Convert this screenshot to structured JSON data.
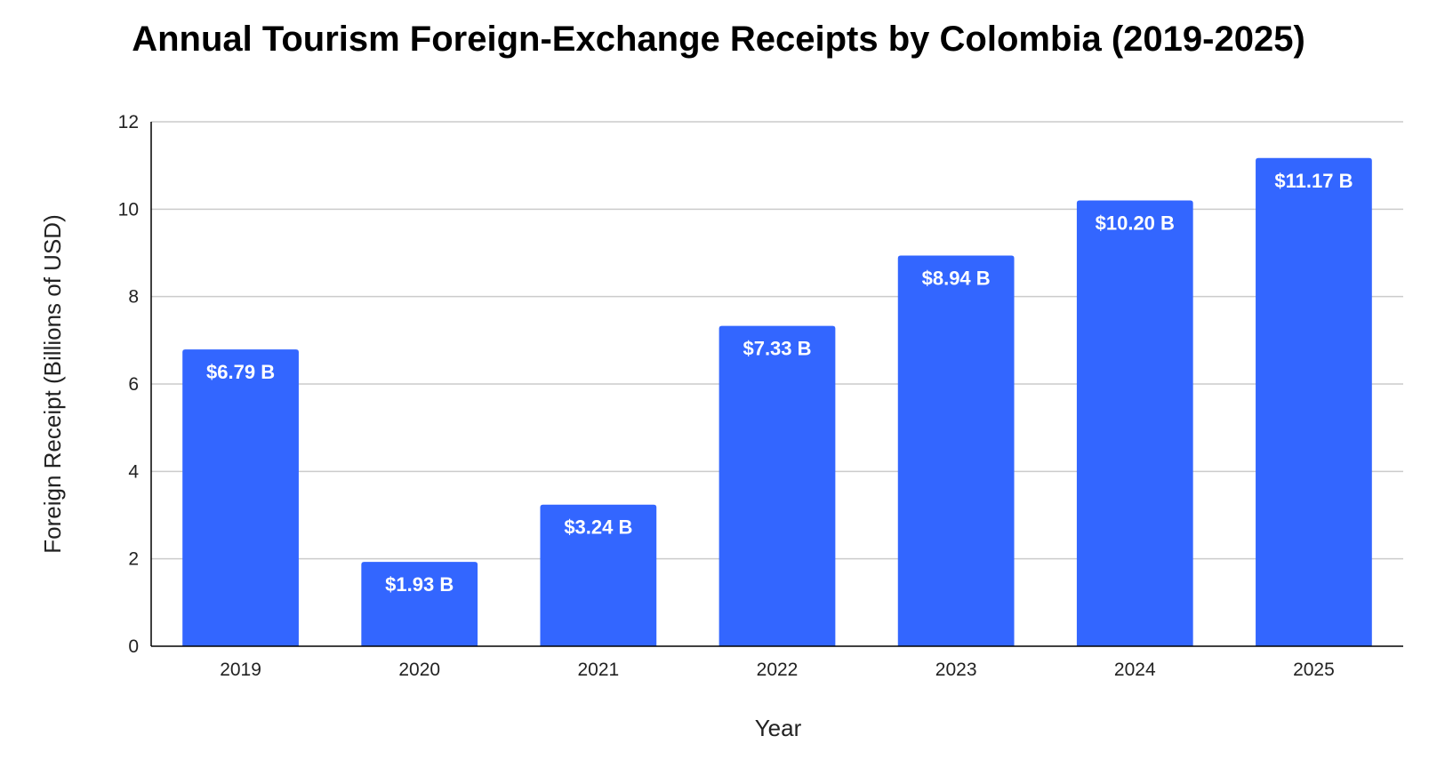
{
  "chart_data": {
    "type": "bar",
    "title": "Annual Tourism Foreign-Exchange Receipts by Colombia (2019-2025)",
    "xlabel": "Year",
    "ylabel": "Foreign Receipt (Billions of USD)",
    "categories": [
      "2019",
      "2020",
      "2021",
      "2022",
      "2023",
      "2024",
      "2025"
    ],
    "values": [
      6.79,
      1.93,
      3.24,
      7.33,
      8.94,
      10.2,
      11.17
    ],
    "data_labels": [
      "$6.79 B",
      "$1.93 B",
      "$3.24 B",
      "$7.33 B",
      "$8.94 B",
      "$10.20 B",
      "$11.17 B"
    ],
    "ylim": [
      0,
      12
    ],
    "yticks": [
      "0",
      "2",
      "4",
      "6",
      "8",
      "10",
      "12"
    ],
    "grid": true,
    "legend": "none",
    "colors": {
      "bar": "#3366ff",
      "grid": "#cccccc",
      "axis": "#000000"
    }
  }
}
